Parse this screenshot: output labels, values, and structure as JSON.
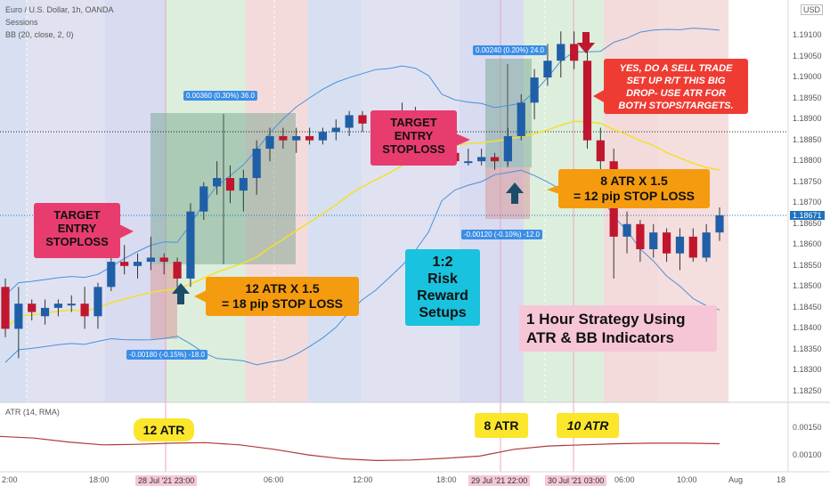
{
  "header": {
    "line1": "Euro / U.S. Dollar, 1h, OANDA",
    "line2": "Sessions",
    "line3": "BB (20, close, 2, 0)",
    "currency": "USD"
  },
  "atr_label": "ATR (14, RMA)",
  "chart_data": {
    "type": "candlestick",
    "y_ticks": [
      "1.19100",
      "1.19050",
      "1.19000",
      "1.18950",
      "1.18900",
      "1.18850",
      "1.18800",
      "1.18750",
      "1.18700",
      "1.18650",
      "1.18600",
      "1.18550",
      "1.18500",
      "1.18450",
      "1.18400",
      "1.18350",
      "1.18300",
      "1.18250"
    ],
    "ylim": [
      1.1822,
      1.1913
    ],
    "current_price": "1.18671",
    "atr_ticks": [
      "0.00150",
      "0.00100"
    ],
    "x_ticks": [
      "2:00",
      "18:00",
      "28 Jul '21  23:00",
      "06:00",
      "12:00",
      "18:00",
      "29 Jul '21  22:00",
      "30 Jul '21  03:00",
      "06:00",
      "10:00",
      "Aug",
      "18"
    ],
    "candles": [
      [
        1.185,
        1.1852,
        1.1838,
        1.184
      ],
      [
        1.184,
        1.185,
        1.1833,
        1.1846
      ],
      [
        1.1846,
        1.1847,
        1.1842,
        1.1844
      ],
      [
        1.1843,
        1.1847,
        1.1841,
        1.1845
      ],
      [
        1.1845,
        1.1847,
        1.1843,
        1.1846
      ],
      [
        1.1846,
        1.1848,
        1.1844,
        1.1846
      ],
      [
        1.1846,
        1.185,
        1.184,
        1.1843
      ],
      [
        1.1843,
        1.1851,
        1.184,
        1.185
      ],
      [
        1.185,
        1.186,
        1.1849,
        1.1856
      ],
      [
        1.1856,
        1.186,
        1.1853,
        1.1855
      ],
      [
        1.1855,
        1.1858,
        1.1852,
        1.1856
      ],
      [
        1.1856,
        1.1862,
        1.1854,
        1.1857
      ],
      [
        1.1857,
        1.1858,
        1.1853,
        1.1856
      ],
      [
        1.1856,
        1.1857,
        1.185,
        1.1852
      ],
      [
        1.1852,
        1.187,
        1.185,
        1.1868
      ],
      [
        1.1868,
        1.1875,
        1.1866,
        1.1874
      ],
      [
        1.1874,
        1.188,
        1.1872,
        1.1876
      ],
      [
        1.1876,
        1.1879,
        1.187,
        1.1873
      ],
      [
        1.1873,
        1.1878,
        1.1868,
        1.1876
      ],
      [
        1.1876,
        1.1885,
        1.1872,
        1.1883
      ],
      [
        1.1883,
        1.1888,
        1.188,
        1.1886
      ],
      [
        1.1886,
        1.1888,
        1.1883,
        1.1885
      ],
      [
        1.1885,
        1.1888,
        1.1882,
        1.1886
      ],
      [
        1.1886,
        1.1888,
        1.1884,
        1.1885
      ],
      [
        1.1885,
        1.1888,
        1.1884,
        1.1887
      ],
      [
        1.1887,
        1.189,
        1.1885,
        1.1888
      ],
      [
        1.1888,
        1.1892,
        1.1886,
        1.1891
      ],
      [
        1.1891,
        1.1892,
        1.1887,
        1.1889
      ],
      [
        1.1889,
        1.1892,
        1.1886,
        1.1888
      ],
      [
        1.1888,
        1.189,
        1.1886,
        1.1887
      ],
      [
        1.1887,
        1.1894,
        1.1886,
        1.1892
      ],
      [
        1.1892,
        1.1893,
        1.1885,
        1.1887
      ],
      [
        1.1887,
        1.1889,
        1.188,
        1.1883
      ],
      [
        1.1883,
        1.1885,
        1.1881,
        1.1882
      ],
      [
        1.1882,
        1.1884,
        1.188,
        1.188
      ],
      [
        1.188,
        1.1883,
        1.1879,
        1.188
      ],
      [
        1.188,
        1.1883,
        1.1879,
        1.1881
      ],
      [
        1.1881,
        1.1882,
        1.1878,
        1.188
      ],
      [
        1.188,
        1.1888,
        1.1879,
        1.1886
      ],
      [
        1.1886,
        1.1896,
        1.1885,
        1.1894
      ],
      [
        1.1894,
        1.1902,
        1.189,
        1.19
      ],
      [
        1.19,
        1.1908,
        1.1898,
        1.1904
      ],
      [
        1.1904,
        1.1911,
        1.19,
        1.1908
      ],
      [
        1.1908,
        1.1911,
        1.1902,
        1.1904
      ],
      [
        1.1904,
        1.1907,
        1.1883,
        1.1885
      ],
      [
        1.1885,
        1.1888,
        1.1878,
        1.188
      ],
      [
        1.188,
        1.1883,
        1.1852,
        1.1862
      ],
      [
        1.1862,
        1.1868,
        1.1858,
        1.1865
      ],
      [
        1.1865,
        1.1866,
        1.1856,
        1.1859
      ],
      [
        1.1859,
        1.1865,
        1.1857,
        1.1863
      ],
      [
        1.1863,
        1.1864,
        1.1856,
        1.1858
      ],
      [
        1.1858,
        1.1864,
        1.1854,
        1.1862
      ],
      [
        1.1862,
        1.1864,
        1.1856,
        1.1857
      ],
      [
        1.1857,
        1.1865,
        1.1856,
        1.1863
      ],
      [
        1.1863,
        1.1869,
        1.1861,
        1.18671
      ]
    ],
    "atr_series": [
      0.00135,
      0.00132,
      0.00125,
      0.0012,
      0.00121,
      0.00123,
      0.00124,
      0.0012,
      0.00112,
      0.00102,
      0.00095,
      0.00092,
      0.00093,
      0.00096,
      0.001,
      0.00112,
      0.00118,
      0.0012,
      0.00122,
      0.00123,
      0.00123,
      0.00122
    ]
  },
  "annotations": {
    "target_entry_stoploss_1": [
      "TARGET",
      "ENTRY",
      "STOPLOSS"
    ],
    "target_entry_stoploss_2": [
      "TARGET",
      "ENTRY",
      "STOPLOSS"
    ],
    "atr12_note": [
      "12 ATR X 1.5",
      "= 18 pip STOP LOSS"
    ],
    "atr8_note": [
      "8 ATR X 1.5",
      "= 12 pip STOP LOSS"
    ],
    "risk_reward": [
      "1:2",
      "Risk",
      "Reward",
      "Setups"
    ],
    "sell_note": [
      "YES, DO A SELL TRADE",
      "SET UP R/T THIS BIG",
      "DROP- USE ATR FOR",
      "BOTH STOPS/TARGETS."
    ],
    "strategy_title": [
      "1 Hour Strategy Using",
      "ATR & BB Indicators"
    ],
    "atr12_label": "12 ATR",
    "atr8_label": "8 ATR",
    "atr10_label": "10 ATR",
    "measure1_top": "0.00360 (0.30%) 36.0",
    "measure1_bottom": "-0.00180 (-0.15%) -18.0",
    "measure2_top": "0.00240 (0.20%) 24.0",
    "measure2_bottom": "-0.00120 (-0.10%) -12.0"
  },
  "colors": {
    "up": "#1f5fa8",
    "down": "#c0162e",
    "bb": "#4a90d9",
    "ma": "#f2e02c",
    "atr": "#b03a3a",
    "note_pink": "#e83c6f",
    "note_orange": "#f59b0f",
    "note_cyan": "#19c2de",
    "note_red": "#ee3c33",
    "note_yellow": "#fbe62b"
  }
}
